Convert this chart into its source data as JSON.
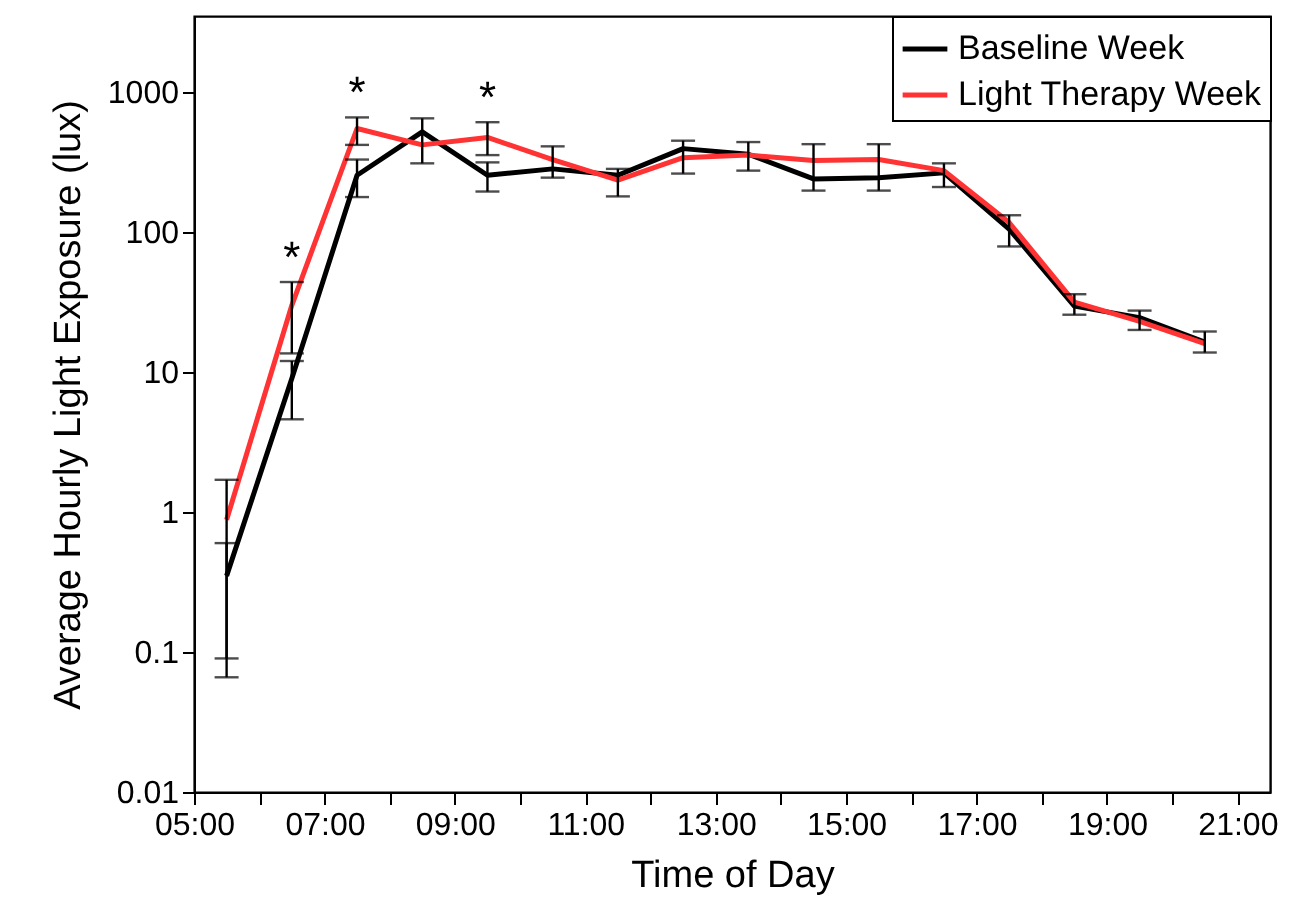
{
  "chart_data": {
    "type": "line",
    "xlabel": "Time of Day",
    "ylabel": "Average Hourly Light Exposure (lux)",
    "x": [
      5.5,
      6.5,
      7.5,
      8.5,
      9.5,
      10.5,
      11.5,
      12.5,
      13.5,
      14.5,
      15.5,
      16.5,
      17.5,
      18.5,
      19.5,
      20.5
    ],
    "series": [
      {
        "name": "Baseline Week",
        "color": "#000000",
        "values": [
          0.35,
          9,
          255,
          520,
          255,
          283,
          255,
          395,
          360,
          240,
          245,
          265,
          105,
          29.6,
          24.5,
          16.4
        ],
        "errors": [
          [
            0.066,
            0.6
          ],
          [
            4.6,
            12
          ],
          [
            178,
            330
          ],
          [
            310,
            650
          ],
          [
            195,
            315
          ],
          [
            245,
            410
          ],
          [
            180,
            283
          ],
          [
            262,
            450
          ],
          [
            275,
            440
          ],
          [
            198,
            425
          ],
          [
            198,
            425
          ],
          [
            210,
            310
          ],
          [
            79,
            132
          ],
          [
            25.7,
            36
          ],
          [
            20,
            27.5
          ],
          [
            13.8,
            19.5
          ]
        ]
      },
      {
        "name": "Light Therapy Week",
        "color": "#ff3333",
        "values": [
          0.88,
          30,
          550,
          420,
          475,
          330,
          235,
          340,
          355,
          325,
          330,
          275,
          117,
          31.6,
          23,
          16
        ],
        "errors": [
          [
            0.09,
            1.7
          ],
          [
            13.6,
            44
          ],
          [
            420,
            660
          ],
          null,
          [
            355,
            610
          ],
          null,
          null,
          null,
          null,
          null,
          null,
          null,
          null,
          null,
          null,
          null
        ]
      }
    ],
    "annotations": [
      {
        "text": "*",
        "x": 6.5,
        "y": 44
      },
      {
        "text": "*",
        "x": 7.5,
        "y": 660
      },
      {
        "text": "*",
        "x": 9.5,
        "y": 610
      }
    ],
    "log": "y",
    "ylim": [
      0.01,
      3500
    ],
    "yticks": [
      0.01,
      0.1,
      1,
      10,
      100,
      1000
    ],
    "xlim": [
      5,
      21.5
    ],
    "xticks": [
      {
        "value": 5,
        "label": "05:00"
      },
      {
        "value": 6,
        "label": null
      },
      {
        "value": 7,
        "label": "07:00"
      },
      {
        "value": 8,
        "label": null
      },
      {
        "value": 9,
        "label": "09:00"
      },
      {
        "value": 10,
        "label": null
      },
      {
        "value": 11,
        "label": "11:00"
      },
      {
        "value": 12,
        "label": null
      },
      {
        "value": 13,
        "label": "13:00"
      },
      {
        "value": 14,
        "label": null
      },
      {
        "value": 15,
        "label": "15:00"
      },
      {
        "value": 16,
        "label": null
      },
      {
        "value": 17,
        "label": "17:00"
      },
      {
        "value": 18,
        "label": null
      },
      {
        "value": 19,
        "label": "19:00"
      },
      {
        "value": 20,
        "label": null
      },
      {
        "value": 21,
        "label": "21:00"
      }
    ],
    "legend": "top right",
    "grid": false,
    "marker": "none",
    "line_style": "solid"
  }
}
